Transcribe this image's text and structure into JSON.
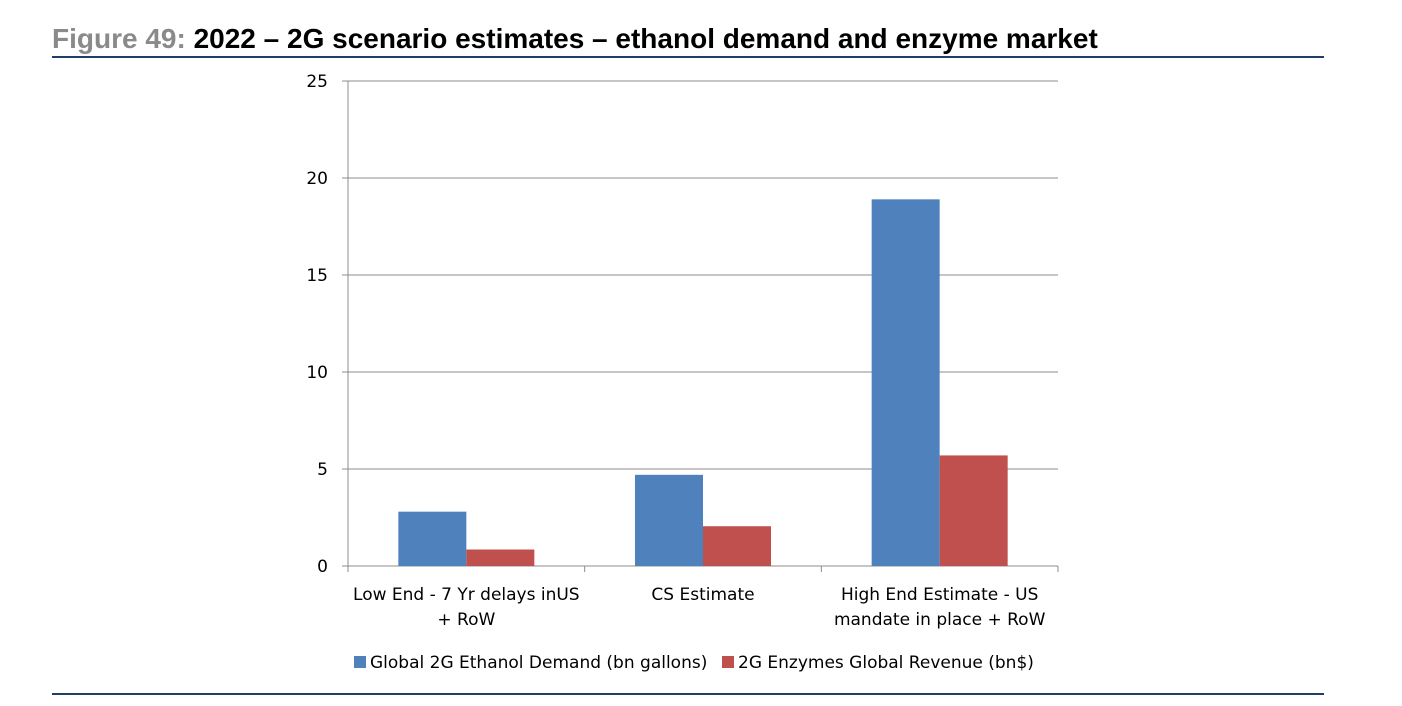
{
  "figure": {
    "label": "Figure 49:",
    "title": "2022 – 2G scenario estimates – ethanol demand and enzyme market"
  },
  "colors": {
    "rule": "#1f3f66",
    "series_1": "#4f81bd",
    "series_2": "#c0504d",
    "grid": "#8c8c8c"
  },
  "chart_data": {
    "type": "bar",
    "categories": [
      [
        "Low End - 7 Yr delays inUS",
        "+ RoW"
      ],
      [
        "CS Estimate"
      ],
      [
        "High End Estimate - US",
        "mandate in place + RoW"
      ]
    ],
    "series": [
      {
        "name": "Global 2G Ethanol Demand (bn gallons)",
        "color": "#4f81bd",
        "values": [
          2.8,
          4.7,
          18.9
        ]
      },
      {
        "name": "2G Enzymes Global Revenue (bn$)",
        "color": "#c0504d",
        "values": [
          0.85,
          2.05,
          5.7
        ]
      }
    ],
    "yticks": [
      "0",
      "5",
      "10",
      "15",
      "20",
      "25"
    ],
    "ylim": [
      0,
      25
    ],
    "grid": true,
    "legend": "bottom",
    "xlabel": "",
    "ylabel": ""
  }
}
